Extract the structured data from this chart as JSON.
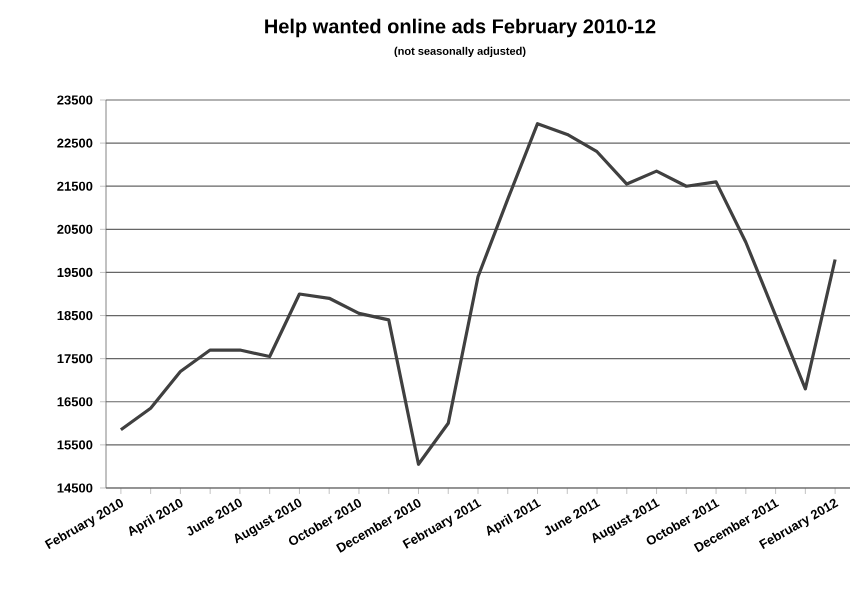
{
  "chart_data": {
    "type": "line",
    "title": "Help wanted online ads February 2010-12",
    "subtitle": "(not seasonally adjusted)",
    "categories": [
      "February 2010",
      null,
      "April 2010",
      null,
      "June 2010",
      null,
      "August 2010",
      null,
      "October 2010",
      null,
      "December 2010",
      null,
      "February 2011",
      null,
      "April 2011",
      null,
      "June 2011",
      null,
      "August 2011",
      null,
      "October 2011",
      null,
      "December 2011",
      null,
      "February 2012"
    ],
    "series": [
      {
        "color": "#404040",
        "values": [
          15850,
          16350,
          17200,
          17700,
          17700,
          17550,
          19000,
          18900,
          18550,
          18400,
          15050,
          16000,
          19400,
          21200,
          22950,
          22700,
          22300,
          21550,
          21850,
          21500,
          21600,
          20200,
          18500,
          16800,
          19800
        ]
      }
    ],
    "ylim": [
      14500,
      23500
    ],
    "yticks": [
      14500,
      15500,
      16500,
      17500,
      18500,
      19500,
      20500,
      21500,
      22500,
      23500
    ],
    "grid": "y",
    "marker": "none",
    "line_style": "solid"
  }
}
